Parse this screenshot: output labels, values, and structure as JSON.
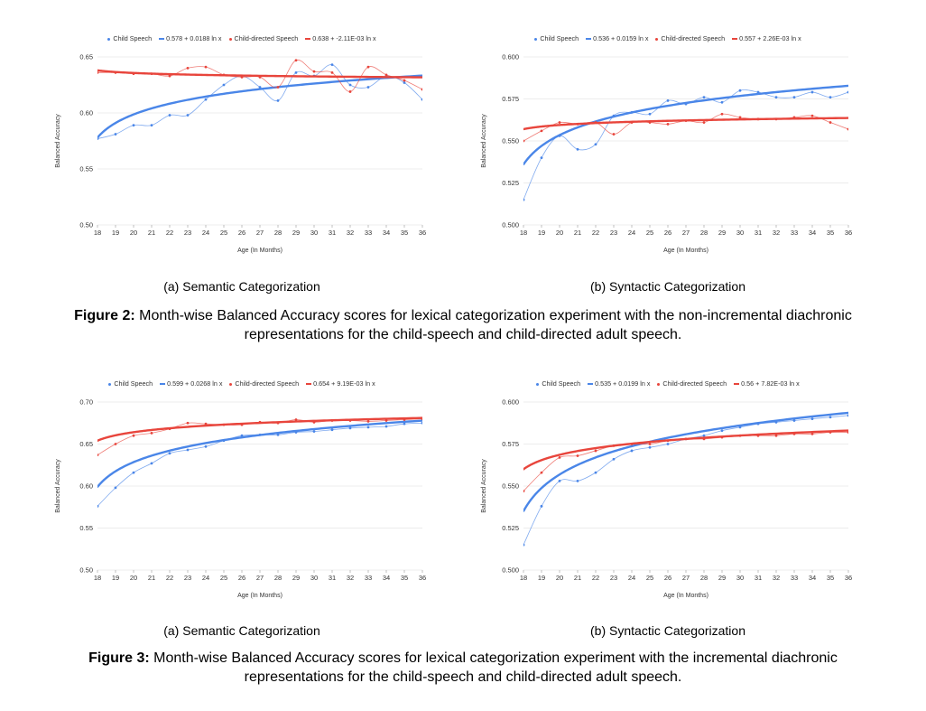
{
  "charts": [
    {
      "id": "fig2a",
      "legend": [
        "Child Speech",
        "0.578 + 0.0188 ln x",
        "Child-directed Speech",
        "0.638 + -2.11E-03 ln x"
      ],
      "caption": "(a) Semantic Categorization"
    },
    {
      "id": "fig2b",
      "legend": [
        "Child Speech",
        "0.536 + 0.0159 ln x",
        "Child-directed Speech",
        "0.557 + 2.26E-03 ln x"
      ],
      "caption": "(b) Syntactic Categorization"
    },
    {
      "id": "fig3a",
      "legend": [
        "Child Speech",
        "0.599 + 0.0268 ln x",
        "Child-directed Speech",
        "0.654 + 9.19E-03 ln x"
      ],
      "caption": "(a) Semantic Categorization"
    },
    {
      "id": "fig3b",
      "legend": [
        "Child Speech",
        "0.535 + 0.0199 ln x",
        "Child-directed Speech",
        "0.56 + 7.82E-03 ln x"
      ],
      "caption": "(b) Syntactic Categorization"
    }
  ],
  "figure2": {
    "label": "Figure 2:",
    "text": "Month-wise Balanced Accuracy scores for lexical categorization experiment with the non-incremental diachronic",
    "text2": "representations for the child-speech and child-directed adult speech."
  },
  "figure3": {
    "label": "Figure 3:",
    "text": "Month-wise Balanced Accuracy scores for lexical categorization experiment with the incremental diachronic",
    "text2": "representations for the child-speech and child-directed adult speech."
  },
  "colors": {
    "child": "#4a86e8",
    "directed": "#e8453c",
    "grid": "#e6e6e6"
  },
  "chart_data": [
    {
      "type": "scatter",
      "xlabel": "Age (In Months)",
      "ylabel": "Balanced Accuracy",
      "x": [
        18,
        19,
        20,
        21,
        22,
        23,
        24,
        25,
        26,
        27,
        28,
        29,
        30,
        31,
        32,
        33,
        34,
        35,
        36
      ],
      "xlim": [
        18,
        36
      ],
      "ylim": [
        0.5,
        0.65
      ],
      "yticks": [
        "0.50",
        "0.55",
        "0.60",
        "0.65"
      ],
      "ytick_values": [
        0.5,
        0.55,
        0.6,
        0.65
      ],
      "series": [
        {
          "name": "Child Speech",
          "values": [
            0.577,
            0.581,
            0.589,
            0.589,
            0.598,
            0.598,
            0.612,
            0.625,
            0.633,
            0.623,
            0.611,
            0.636,
            0.633,
            0.643,
            0.625,
            0.623,
            0.633,
            0.627,
            0.612
          ],
          "trend": {
            "a": 0.578,
            "b": 0.0188,
            "label": "0.578 + 0.0188 ln x"
          }
        },
        {
          "name": "Child-directed Speech",
          "values": [
            0.636,
            0.636,
            0.635,
            0.635,
            0.633,
            0.64,
            0.641,
            0.634,
            0.632,
            0.632,
            0.623,
            0.647,
            0.637,
            0.636,
            0.619,
            0.641,
            0.634,
            0.629,
            0.621
          ],
          "trend": {
            "a": 0.638,
            "b": -0.00211,
            "label": "0.638 + -2.11E-03 ln x"
          }
        }
      ]
    },
    {
      "type": "scatter",
      "xlabel": "Age (In Months)",
      "ylabel": "Balanced Accuracy",
      "x": [
        18,
        19,
        20,
        21,
        22,
        23,
        24,
        25,
        26,
        27,
        28,
        29,
        30,
        31,
        32,
        33,
        34,
        35,
        36
      ],
      "xlim": [
        18,
        36
      ],
      "ylim": [
        0.5,
        0.6
      ],
      "yticks": [
        "0.500",
        "0.525",
        "0.550",
        "0.575",
        "0.600"
      ],
      "ytick_values": [
        0.5,
        0.525,
        0.55,
        0.575,
        0.6
      ],
      "series": [
        {
          "name": "Child Speech",
          "values": [
            0.515,
            0.54,
            0.553,
            0.545,
            0.548,
            0.565,
            0.567,
            0.566,
            0.574,
            0.572,
            0.576,
            0.573,
            0.58,
            0.579,
            0.576,
            0.576,
            0.579,
            0.576,
            0.579
          ],
          "trend": {
            "a": 0.536,
            "b": 0.0159,
            "label": "0.536 + 0.0159 ln x"
          }
        },
        {
          "name": "Child-directed Speech",
          "values": [
            0.55,
            0.556,
            0.561,
            0.56,
            0.561,
            0.554,
            0.561,
            0.561,
            0.56,
            0.562,
            0.561,
            0.566,
            0.564,
            0.563,
            0.563,
            0.564,
            0.565,
            0.561,
            0.557
          ],
          "trend": {
            "a": 0.557,
            "b": 0.00226,
            "label": "0.557 + 2.26E-03 ln x"
          }
        }
      ]
    },
    {
      "type": "scatter",
      "xlabel": "Age (In Months)",
      "ylabel": "Balanced Accuracy",
      "x": [
        18,
        19,
        20,
        21,
        22,
        23,
        24,
        25,
        26,
        27,
        28,
        29,
        30,
        31,
        32,
        33,
        34,
        35,
        36
      ],
      "xlim": [
        18,
        36
      ],
      "ylim": [
        0.5,
        0.7
      ],
      "yticks": [
        "0.50",
        "0.55",
        "0.60",
        "0.65",
        "0.70"
      ],
      "ytick_values": [
        0.5,
        0.55,
        0.6,
        0.65,
        0.7
      ],
      "series": [
        {
          "name": "Child Speech",
          "values": [
            0.576,
            0.598,
            0.616,
            0.627,
            0.639,
            0.643,
            0.647,
            0.654,
            0.66,
            0.661,
            0.661,
            0.664,
            0.665,
            0.667,
            0.669,
            0.67,
            0.671,
            0.674,
            0.675
          ],
          "trend": {
            "a": 0.599,
            "b": 0.0268,
            "label": "0.599 + 0.0268 ln x"
          }
        },
        {
          "name": "Child-directed Speech",
          "values": [
            0.637,
            0.65,
            0.66,
            0.663,
            0.668,
            0.675,
            0.674,
            0.673,
            0.673,
            0.676,
            0.675,
            0.679,
            0.676,
            0.678,
            0.678,
            0.677,
            0.678,
            0.679,
            0.68
          ],
          "trend": {
            "a": 0.654,
            "b": 0.00919,
            "label": "0.654 + 9.19E-03 ln x"
          }
        }
      ]
    },
    {
      "type": "scatter",
      "xlabel": "Age (In Months)",
      "ylabel": "Balanced Accuracy",
      "x": [
        18,
        19,
        20,
        21,
        22,
        23,
        24,
        25,
        26,
        27,
        28,
        29,
        30,
        31,
        32,
        33,
        34,
        35,
        36
      ],
      "xlim": [
        18,
        36
      ],
      "ylim": [
        0.5,
        0.6
      ],
      "yticks": [
        "0.500",
        "0.525",
        "0.550",
        "0.575",
        "0.600"
      ],
      "ytick_values": [
        0.5,
        0.525,
        0.55,
        0.575,
        0.6
      ],
      "series": [
        {
          "name": "Child Speech",
          "values": [
            0.515,
            0.538,
            0.553,
            0.553,
            0.558,
            0.566,
            0.571,
            0.573,
            0.575,
            0.578,
            0.58,
            0.583,
            0.585,
            0.587,
            0.588,
            0.589,
            0.59,
            0.591,
            0.592
          ],
          "trend": {
            "a": 0.535,
            "b": 0.0199,
            "label": "0.535 + 0.0199 ln x"
          }
        },
        {
          "name": "Child-directed Speech",
          "values": [
            0.547,
            0.558,
            0.567,
            0.568,
            0.571,
            0.574,
            0.575,
            0.575,
            0.577,
            0.578,
            0.578,
            0.579,
            0.58,
            0.58,
            0.58,
            0.581,
            0.581,
            0.582,
            0.582
          ],
          "trend": {
            "a": 0.56,
            "b": 0.00782,
            "label": "0.56 + 7.82E-03 ln x"
          }
        }
      ]
    }
  ]
}
